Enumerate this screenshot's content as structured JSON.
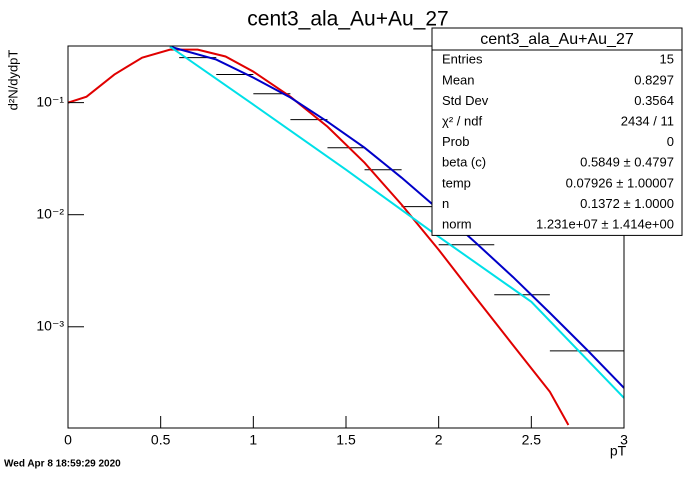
{
  "chart_data": {
    "type": "line",
    "title": "cent3_ala_Au+Au_27",
    "x_label": "pT",
    "y_label": "d²N/dydpT",
    "log_y": true,
    "xlim": [
      0,
      3
    ],
    "xticks": [
      0,
      0.5,
      1,
      1.5,
      2,
      2.5,
      3
    ],
    "ylim": [
      0.000125,
      0.32
    ],
    "yticks": [
      {
        "value": 0.001,
        "label": "10⁻³"
      },
      {
        "value": 0.01,
        "label": "10⁻²"
      },
      {
        "value": 0.1,
        "label": "10⁻¹"
      }
    ],
    "histogram": {
      "color": "#000000",
      "bins": [
        0.6,
        0.8,
        1.0,
        1.2,
        1.4,
        1.6,
        1.8,
        2.0,
        2.3,
        2.6,
        3.0
      ],
      "values": [
        0.252,
        0.178,
        0.12,
        0.0705,
        0.0396,
        0.0252,
        0.0118,
        0.0054,
        0.00193,
        0.00061
      ]
    },
    "series": [
      {
        "color": "#e00000",
        "x": [
          0,
          0.1,
          0.25,
          0.4,
          0.55,
          0.7,
          0.85,
          1.0,
          1.2,
          1.4,
          1.6,
          1.8,
          2.0,
          2.2,
          2.4,
          2.6,
          2.7
        ],
        "values": [
          0.1,
          0.113,
          0.178,
          0.252,
          0.297,
          0.297,
          0.258,
          0.189,
          0.113,
          0.0611,
          0.0291,
          0.0123,
          0.00487,
          0.00182,
          0.00069,
          0.000263,
          0.000133
        ]
      },
      {
        "color": "#0000c8",
        "x": [
          0.55,
          0.8,
          1.0,
          1.2,
          1.4,
          1.6,
          1.8,
          2.0,
          2.2,
          2.4,
          2.6,
          2.8,
          3.0
        ],
        "values": [
          0.316,
          0.242,
          0.167,
          0.111,
          0.0676,
          0.0396,
          0.0214,
          0.0111,
          0.00562,
          0.00279,
          0.00133,
          0.000624,
          0.000285
        ]
      },
      {
        "color": "#00e0e8",
        "x": [
          0.55,
          1.0,
          1.5,
          2.0,
          2.5,
          3.0
        ],
        "values": [
          0.316,
          0.096,
          0.0252,
          0.00637,
          0.00167,
          0.000232
        ]
      }
    ],
    "stats_box": {
      "title": "cent3_ala_Au+Au_27",
      "rows": [
        [
          "Entries",
          "15"
        ],
        [
          "Mean",
          "0.8297"
        ],
        [
          "Std Dev",
          "0.3564"
        ],
        [
          "χ² / ndf",
          "2434 / 11"
        ],
        [
          "Prob",
          "0"
        ],
        [
          "beta (c)",
          "0.5849 ± 0.4797"
        ],
        [
          "temp",
          "0.07926 ± 1.00007"
        ],
        [
          "n",
          "0.1372 ± 1.0000"
        ],
        [
          "norm",
          "1.231e+07 ± 1.414e+00"
        ]
      ]
    }
  },
  "footer": "Wed Apr  8 18:59:29 2020"
}
